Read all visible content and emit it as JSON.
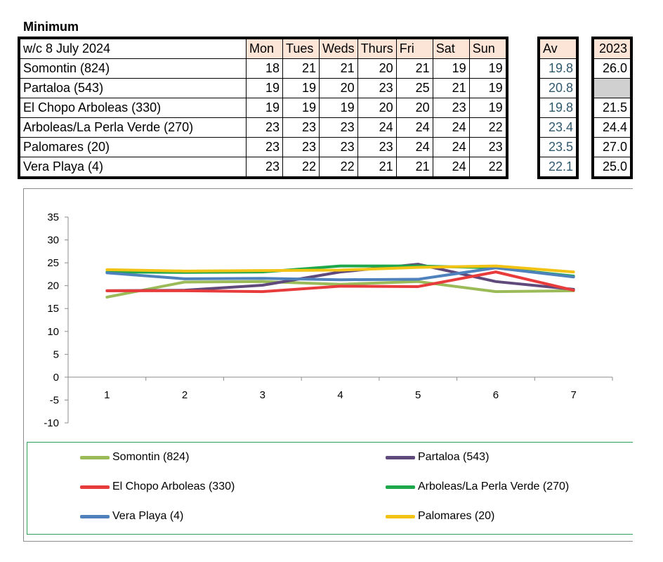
{
  "heading": "Minimum",
  "table": {
    "week_label": "w/c  8 July 2024",
    "days": [
      "Mon",
      "Tues",
      "Weds",
      "Thurs",
      "Fri",
      "Sat",
      "Sun"
    ],
    "av_header": "Av",
    "year_header": "2023",
    "rows": [
      {
        "location": "Somontin (824)",
        "values": [
          "18",
          "21",
          "21",
          "20",
          "21",
          "19",
          "19"
        ],
        "av": "19.8",
        "prev": "26.0"
      },
      {
        "location": "Partaloa (543)",
        "values": [
          "19",
          "19",
          "20",
          "23",
          "25",
          "21",
          "19"
        ],
        "av": "20.8",
        "prev": ""
      },
      {
        "location": "El Chopo Arboleas (330)",
        "values": [
          "19",
          "19",
          "19",
          "20",
          "20",
          "23",
          "19"
        ],
        "av": "19.8",
        "prev": "21.5"
      },
      {
        "location": "Arboleas/La Perla Verde (270)",
        "values": [
          "23",
          "23",
          "23",
          "24",
          "24",
          "24",
          "22"
        ],
        "av": "23.4",
        "prev": "24.4"
      },
      {
        "location": "Palomares (20)",
        "values": [
          "23",
          "23",
          "23",
          "23",
          "24",
          "24",
          "23"
        ],
        "av": "23.5",
        "prev": "27.0"
      },
      {
        "location": "Vera Playa (4)",
        "values": [
          "23",
          "22",
          "22",
          "21",
          "21",
          "24",
          "22"
        ],
        "av": "22.1",
        "prev": "25.0"
      }
    ]
  },
  "chart_data": {
    "type": "line",
    "x": [
      1,
      2,
      3,
      4,
      5,
      6,
      7
    ],
    "ylim": [
      -10,
      35
    ],
    "yticks": [
      -10,
      -5,
      0,
      5,
      10,
      15,
      20,
      25,
      30,
      35
    ],
    "grid": false,
    "legend_position": "bottom",
    "series": [
      {
        "name": "Somontin (824)",
        "color": "#9bbb59",
        "values": [
          17.5,
          20.8,
          20.9,
          20.3,
          20.9,
          18.7,
          18.9
        ]
      },
      {
        "name": "Partaloa (543)",
        "color": "#604a7b",
        "values": [
          18.9,
          19.0,
          20.1,
          23.0,
          24.7,
          20.9,
          19.2
        ]
      },
      {
        "name": "El Chopo Arboleas (330)",
        "color": "#e83b3b",
        "values": [
          18.9,
          18.9,
          18.7,
          19.9,
          19.8,
          23.0,
          19.0
        ]
      },
      {
        "name": "Arboleas/La Perla Verde (270)",
        "color": "#1ea84b",
        "values": [
          23.0,
          22.9,
          23.0,
          24.3,
          24.3,
          23.9,
          22.1
        ]
      },
      {
        "name": "Vera Playa (4)",
        "color": "#4f81bd",
        "values": [
          22.8,
          21.5,
          21.6,
          21.3,
          21.4,
          23.9,
          21.9
        ]
      },
      {
        "name": "Palomares (20)",
        "color": "#f2c314",
        "values": [
          23.5,
          23.2,
          23.3,
          23.4,
          24.0,
          24.3,
          23.0
        ]
      }
    ]
  }
}
